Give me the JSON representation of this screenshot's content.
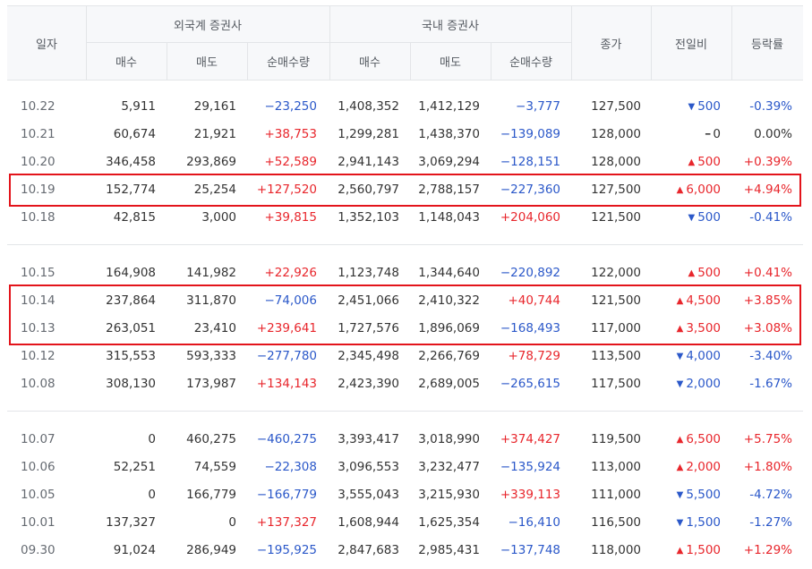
{
  "header": {
    "date": "일자",
    "foreign_group": "외국계 증권사",
    "domestic_group": "국내 증권사",
    "buy": "매수",
    "sell": "매도",
    "net": "순매수량",
    "close": "종가",
    "change": "전일비",
    "rate": "등락률"
  },
  "groups": [
    [
      {
        "date": "10.22",
        "f_buy": "5,911",
        "f_sell": "29,161",
        "f_net": "−23,250",
        "f_dir": "down",
        "d_buy": "1,408,352",
        "d_sell": "1,412,129",
        "d_net": "−3,777",
        "d_dir": "down",
        "close": "127,500",
        "chg": "500",
        "chg_dir": "down",
        "rate": "-0.39%"
      },
      {
        "date": "10.21",
        "f_buy": "60,674",
        "f_sell": "21,921",
        "f_net": "+38,753",
        "f_dir": "up",
        "d_buy": "1,299,281",
        "d_sell": "1,438,370",
        "d_net": "−139,089",
        "d_dir": "down",
        "close": "128,000",
        "chg": "0",
        "chg_dir": "flat",
        "rate": "0.00%"
      },
      {
        "date": "10.20",
        "f_buy": "346,458",
        "f_sell": "293,869",
        "f_net": "+52,589",
        "f_dir": "up",
        "d_buy": "2,941,143",
        "d_sell": "3,069,294",
        "d_net": "−128,151",
        "d_dir": "down",
        "close": "128,000",
        "chg": "500",
        "chg_dir": "up",
        "rate": "+0.39%"
      },
      {
        "date": "10.19",
        "f_buy": "152,774",
        "f_sell": "25,254",
        "f_net": "+127,520",
        "f_dir": "up",
        "d_buy": "2,560,797",
        "d_sell": "2,788,157",
        "d_net": "−227,360",
        "d_dir": "down",
        "close": "127,500",
        "chg": "6,000",
        "chg_dir": "up",
        "rate": "+4.94%"
      },
      {
        "date": "10.18",
        "f_buy": "42,815",
        "f_sell": "3,000",
        "f_net": "+39,815",
        "f_dir": "up",
        "d_buy": "1,352,103",
        "d_sell": "1,148,043",
        "d_net": "+204,060",
        "d_dir": "up",
        "close": "121,500",
        "chg": "500",
        "chg_dir": "down",
        "rate": "-0.41%"
      }
    ],
    [
      {
        "date": "10.15",
        "f_buy": "164,908",
        "f_sell": "141,982",
        "f_net": "+22,926",
        "f_dir": "up",
        "d_buy": "1,123,748",
        "d_sell": "1,344,640",
        "d_net": "−220,892",
        "d_dir": "down",
        "close": "122,000",
        "chg": "500",
        "chg_dir": "up",
        "rate": "+0.41%"
      },
      {
        "date": "10.14",
        "f_buy": "237,864",
        "f_sell": "311,870",
        "f_net": "−74,006",
        "f_dir": "down",
        "d_buy": "2,451,066",
        "d_sell": "2,410,322",
        "d_net": "+40,744",
        "d_dir": "up",
        "close": "121,500",
        "chg": "4,500",
        "chg_dir": "up",
        "rate": "+3.85%"
      },
      {
        "date": "10.13",
        "f_buy": "263,051",
        "f_sell": "23,410",
        "f_net": "+239,641",
        "f_dir": "up",
        "d_buy": "1,727,576",
        "d_sell": "1,896,069",
        "d_net": "−168,493",
        "d_dir": "down",
        "close": "117,000",
        "chg": "3,500",
        "chg_dir": "up",
        "rate": "+3.08%"
      },
      {
        "date": "10.12",
        "f_buy": "315,553",
        "f_sell": "593,333",
        "f_net": "−277,780",
        "f_dir": "down",
        "d_buy": "2,345,498",
        "d_sell": "2,266,769",
        "d_net": "+78,729",
        "d_dir": "up",
        "close": "113,500",
        "chg": "4,000",
        "chg_dir": "down",
        "rate": "-3.40%"
      },
      {
        "date": "10.08",
        "f_buy": "308,130",
        "f_sell": "173,987",
        "f_net": "+134,143",
        "f_dir": "up",
        "d_buy": "2,423,390",
        "d_sell": "2,689,005",
        "d_net": "−265,615",
        "d_dir": "down",
        "close": "117,500",
        "chg": "2,000",
        "chg_dir": "down",
        "rate": "-1.67%"
      }
    ],
    [
      {
        "date": "10.07",
        "f_buy": "0",
        "f_sell": "460,275",
        "f_net": "−460,275",
        "f_dir": "down",
        "d_buy": "3,393,417",
        "d_sell": "3,018,990",
        "d_net": "+374,427",
        "d_dir": "up",
        "close": "119,500",
        "chg": "6,500",
        "chg_dir": "up",
        "rate": "+5.75%"
      },
      {
        "date": "10.06",
        "f_buy": "52,251",
        "f_sell": "74,559",
        "f_net": "−22,308",
        "f_dir": "down",
        "d_buy": "3,096,553",
        "d_sell": "3,232,477",
        "d_net": "−135,924",
        "d_dir": "down",
        "close": "113,000",
        "chg": "2,000",
        "chg_dir": "up",
        "rate": "+1.80%"
      },
      {
        "date": "10.05",
        "f_buy": "0",
        "f_sell": "166,779",
        "f_net": "−166,779",
        "f_dir": "down",
        "d_buy": "3,555,043",
        "d_sell": "3,215,930",
        "d_net": "+339,113",
        "d_dir": "up",
        "close": "111,000",
        "chg": "5,500",
        "chg_dir": "down",
        "rate": "-4.72%"
      },
      {
        "date": "10.01",
        "f_buy": "137,327",
        "f_sell": "0",
        "f_net": "+137,327",
        "f_dir": "up",
        "d_buy": "1,608,944",
        "d_sell": "1,625,354",
        "d_net": "−16,410",
        "d_dir": "down",
        "close": "116,500",
        "chg": "1,500",
        "chg_dir": "down",
        "rate": "-1.27%"
      },
      {
        "date": "09.30",
        "f_buy": "91,024",
        "f_sell": "286,949",
        "f_net": "−195,925",
        "f_dir": "down",
        "d_buy": "2,847,683",
        "d_sell": "2,985,431",
        "d_net": "−137,748",
        "d_dir": "down",
        "close": "118,000",
        "chg": "1,500",
        "chg_dir": "up",
        "rate": "+1.29%"
      }
    ]
  ],
  "highlights": [
    {
      "dates": [
        "10.19"
      ]
    },
    {
      "dates": [
        "10.14",
        "10.13"
      ]
    }
  ],
  "colors": {
    "up": "#e8262c",
    "down": "#2b58c9",
    "highlight": "#e3141b"
  },
  "icons": {
    "up": "triangle-up-icon",
    "down": "triangle-down-icon",
    "flat": "dash-icon"
  }
}
